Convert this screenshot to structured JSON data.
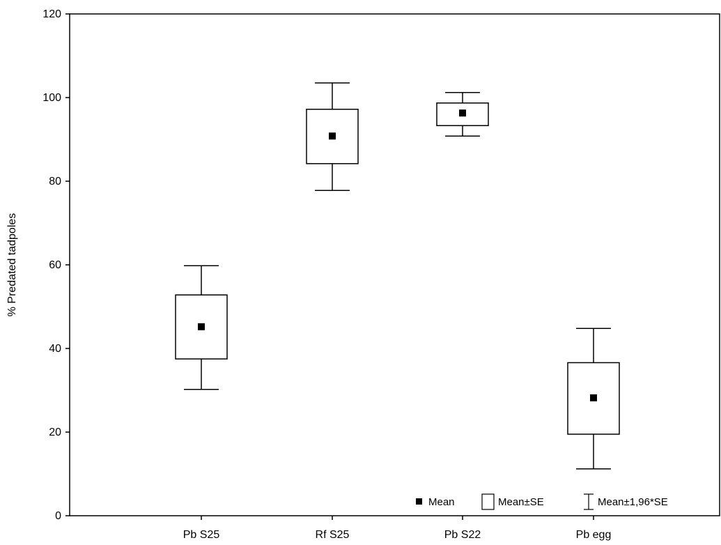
{
  "chart_data": {
    "type": "box",
    "title": "",
    "xlabel": "",
    "ylabel": "% Predated tadpoles",
    "ylim": [
      0,
      120
    ],
    "yticks": [
      "0",
      "20",
      "40",
      "60",
      "80",
      "100",
      "120"
    ],
    "categories": [
      "Pb S25",
      "Rf S25",
      "Pb S22",
      "Pb egg"
    ],
    "series": [
      {
        "name": "Mean",
        "values": [
          45.2,
          90.8,
          96.3,
          28.2
        ]
      },
      {
        "name": "Mean±SE",
        "low": [
          37.5,
          84.2,
          93.3,
          19.5
        ],
        "high": [
          52.8,
          97.2,
          98.7,
          36.6
        ]
      },
      {
        "name": "Mean±1,96*SE",
        "low": [
          30.2,
          77.8,
          90.8,
          11.2
        ],
        "high": [
          59.8,
          103.5,
          101.2,
          44.8
        ]
      }
    ],
    "grid": false,
    "legend": {
      "position": "bottom-right",
      "entries": [
        "Mean",
        "Mean±SE",
        "Mean±1,96*SE"
      ]
    }
  }
}
